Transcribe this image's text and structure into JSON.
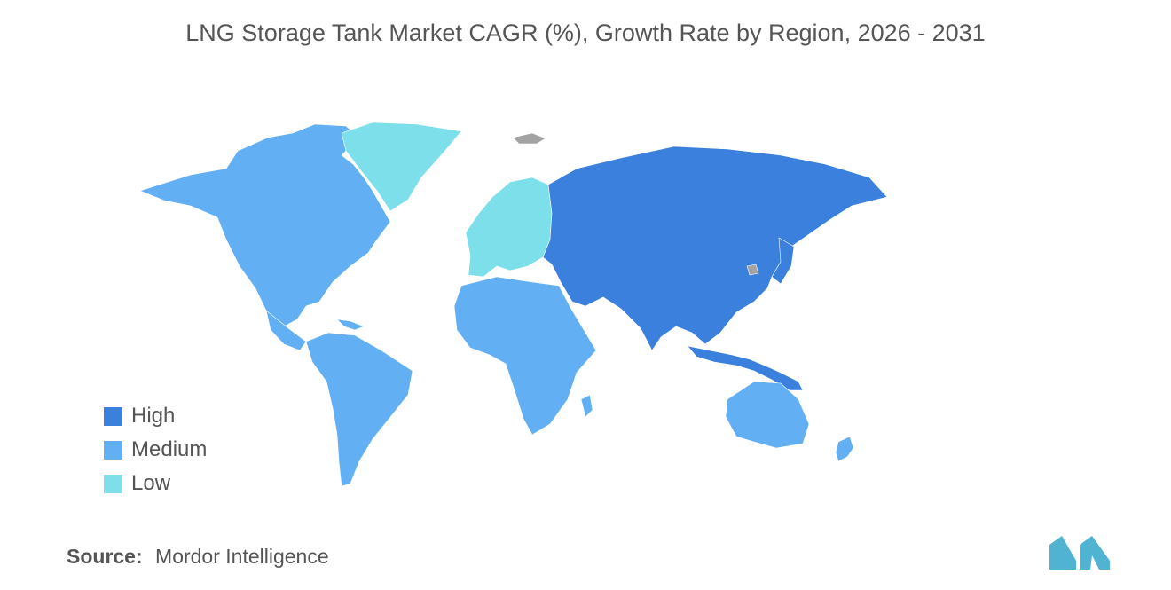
{
  "title": "LNG Storage Tank Market CAGR (%), Growth Rate by Region, 2026 - 2031",
  "legend": [
    {
      "label": "High",
      "color": "#3a80dc"
    },
    {
      "label": "Medium",
      "color": "#62b0f3"
    },
    {
      "label": "Low",
      "color": "#7ddfea"
    }
  ],
  "no_data_color": "#a3a3a3",
  "source": {
    "prefix": "Source:",
    "text": "Mordor Intelligence"
  },
  "logo": {
    "icon": "mordor-intelligence-logo",
    "color": "#4fb3d1"
  }
}
